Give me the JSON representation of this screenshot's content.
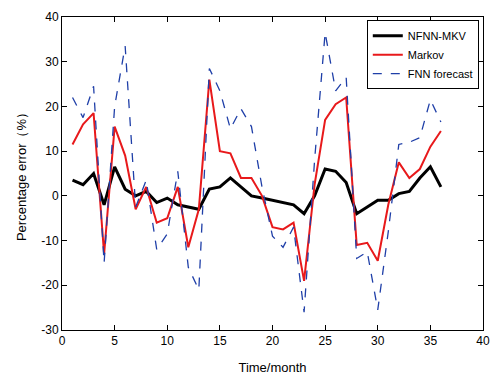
{
  "chart_data": {
    "type": "line",
    "x_label": "Time/month",
    "y_label": "Percentage error（%）",
    "x": [
      1,
      2,
      3,
      4,
      5,
      6,
      7,
      8,
      9,
      10,
      11,
      12,
      13,
      14,
      15,
      16,
      17,
      18,
      19,
      20,
      21,
      22,
      23,
      24,
      25,
      26,
      27,
      28,
      29,
      30,
      31,
      32,
      33,
      34,
      35,
      36
    ],
    "series": [
      {
        "name": "NFNN-MKV",
        "color": "#000000",
        "line_style": "solid",
        "values": [
          3.5,
          2.5,
          5,
          -2,
          6.5,
          1.5,
          0,
          1,
          -1.5,
          -0.5,
          -2,
          -2.5,
          -3,
          1.5,
          2,
          4,
          2,
          0,
          -0.5,
          -1,
          -1.5,
          -2,
          -4,
          0,
          6,
          5.5,
          3,
          -4,
          -2.5,
          -1,
          -1,
          0.5,
          1,
          4,
          6.5,
          2
        ]
      },
      {
        "name": "Markov",
        "color": "#e8191b",
        "line_style": "solid",
        "values": [
          11.5,
          16,
          18.5,
          -13,
          15.5,
          9,
          -3,
          2,
          -6,
          -5,
          2,
          -11.5,
          -3,
          26,
          10,
          9.5,
          4,
          4,
          0,
          -7,
          -7.5,
          -6,
          -19,
          2.5,
          17,
          20.5,
          22,
          -11,
          -10.5,
          -14.5,
          -2,
          7.5,
          4,
          6,
          11,
          14.5
        ]
      },
      {
        "name": "FNN forecast",
        "color": "#1f3fa8",
        "line_style": "dashed",
        "values": [
          22,
          17.5,
          24.5,
          -15,
          20,
          33.5,
          -2.5,
          3.5,
          -12,
          -8.5,
          5.5,
          -16,
          -21,
          28.5,
          23.5,
          15,
          19.5,
          15.5,
          2,
          -9,
          -11.5,
          -7,
          -26,
          8,
          36.5,
          23.5,
          26.5,
          -14,
          -12.5,
          -25.5,
          -8,
          11.5,
          12,
          13,
          21.5,
          16.5
        ]
      }
    ],
    "xlim": [
      0,
      40
    ],
    "xticks": [
      0,
      5,
      10,
      15,
      20,
      25,
      30,
      35,
      40
    ],
    "ylim": [
      -30,
      40
    ],
    "yticks": [
      -30,
      -20,
      -10,
      0,
      10,
      20,
      30,
      40
    ],
    "grid": false,
    "legend": "upper right"
  }
}
